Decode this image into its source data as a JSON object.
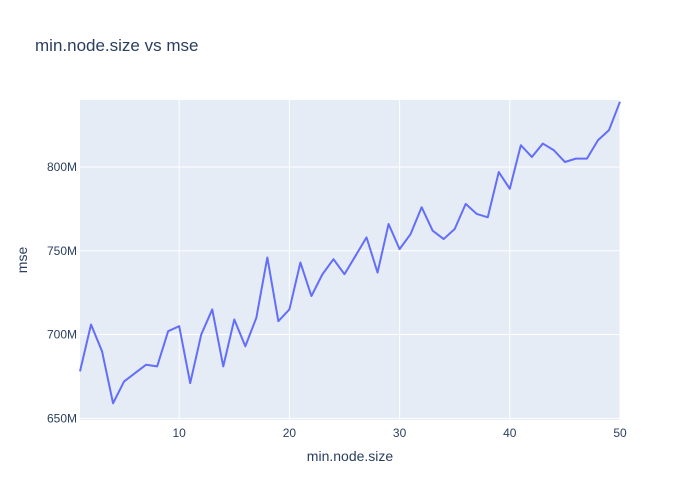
{
  "chart_data": {
    "type": "line",
    "title": "min.node.size vs mse",
    "xlabel": "min.node.size",
    "ylabel": "mse",
    "xlim": [
      1,
      50
    ],
    "ylim": [
      649000000,
      840000000
    ],
    "grid": true,
    "x_ticks": [
      10,
      20,
      30,
      40,
      50
    ],
    "x_tick_labels": [
      "10",
      "20",
      "30",
      "40",
      "50"
    ],
    "y_ticks": [
      650000000,
      700000000,
      750000000,
      800000000
    ],
    "y_tick_labels": [
      "650M",
      "700M",
      "750M",
      "800M"
    ],
    "series": [
      {
        "color": "#636efa",
        "x": [
          1,
          2,
          3,
          4,
          5,
          6,
          7,
          8,
          9,
          10,
          11,
          12,
          13,
          14,
          15,
          16,
          17,
          18,
          19,
          20,
          21,
          22,
          23,
          24,
          25,
          26,
          27,
          28,
          29,
          30,
          31,
          32,
          33,
          34,
          35,
          36,
          37,
          38,
          39,
          40,
          41,
          42,
          43,
          44,
          45,
          46,
          47,
          48,
          49,
          50
        ],
        "y": [
          678000000,
          706000000,
          690000000,
          659000000,
          672000000,
          677000000,
          682000000,
          681000000,
          702000000,
          705000000,
          671000000,
          700000000,
          715000000,
          681000000,
          709000000,
          693000000,
          710000000,
          746000000,
          708000000,
          715000000,
          743000000,
          723000000,
          736000000,
          745000000,
          736000000,
          747000000,
          758000000,
          737000000,
          766000000,
          751000000,
          760000000,
          776000000,
          762000000,
          757000000,
          763000000,
          778000000,
          772000000,
          770000000,
          797000000,
          787000000,
          813000000,
          806000000,
          814000000,
          810000000,
          803000000,
          805000000,
          805000000,
          816000000,
          822000000,
          839000000
        ]
      }
    ]
  },
  "colors": {
    "plot_bg": "#e5ecf6",
    "grid": "#ffffff",
    "line": "#636efa",
    "text": "#2a3f5f"
  }
}
